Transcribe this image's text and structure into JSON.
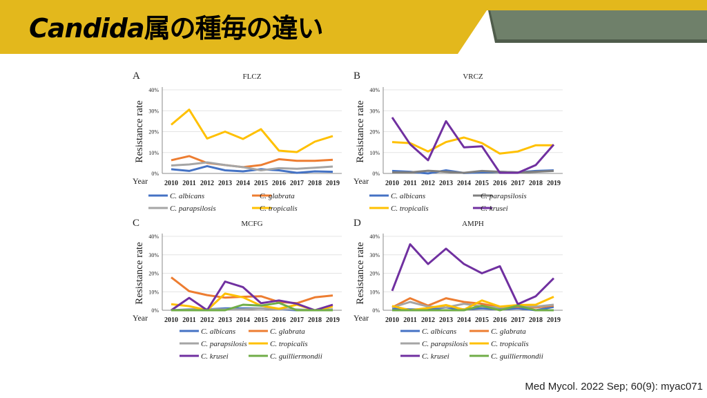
{
  "slide": {
    "title_italic": "Candida",
    "title_rest": "属の種毎の違い",
    "citation": "Med Mycol. 2022 Sep; 60(9): myac071",
    "colors": {
      "banner_yellow": "#E3B81C",
      "banner_green": "#6F806A",
      "banner_green_shadow": "#4F5C4B"
    }
  },
  "chart_data": [
    {
      "type": "line",
      "panel": "A",
      "title": "FLCZ",
      "ylabel": "Resistance rate",
      "xlabel": "Year",
      "yticks": [
        "0%",
        "10%",
        "20%",
        "30%",
        "40%"
      ],
      "ylim": [
        0,
        40
      ],
      "grid": true,
      "legend": "bottom",
      "categories": [
        "2010",
        "2011",
        "2012",
        "2013",
        "2014",
        "2015",
        "2016",
        "2017",
        "2018",
        "2019"
      ],
      "series": [
        {
          "name": "C. albicans",
          "color": "#4472C4",
          "values": [
            2,
            1.2,
            3.5,
            1.5,
            1,
            2,
            1.5,
            0.3,
            1,
            0.8
          ]
        },
        {
          "name": "C. glabrata",
          "color": "#ED7D31",
          "values": [
            6.3,
            8.3,
            5,
            4,
            3,
            4,
            6.8,
            6,
            6,
            6.5
          ]
        },
        {
          "name": "C. parapsilosis",
          "color": "#A5A5A5",
          "values": [
            3.8,
            4.3,
            5.3,
            4,
            3,
            1.5,
            2.5,
            2.2,
            2.7,
            3.3
          ]
        },
        {
          "name": "C. tropicalis",
          "color": "#FFC000",
          "values": [
            23.3,
            30.5,
            16.7,
            20,
            16.5,
            21.2,
            10.9,
            10.2,
            15.2,
            17.9
          ]
        }
      ]
    },
    {
      "type": "line",
      "panel": "B",
      "title": "VRCZ",
      "ylabel": "Resistance rate",
      "xlabel": "Year",
      "yticks": [
        "0%",
        "10%",
        "20%",
        "30%",
        "40%"
      ],
      "ylim": [
        0,
        40
      ],
      "grid": true,
      "legend": "bottom",
      "categories": [
        "2010",
        "2011",
        "2012",
        "2013",
        "2014",
        "2015",
        "2016",
        "2017",
        "2018",
        "2019"
      ],
      "series": [
        {
          "name": "C. albicans",
          "color": "#4472C4",
          "values": [
            1.2,
            0.8,
            0,
            1.5,
            0.2,
            0.5,
            0.8,
            0.5,
            1.2,
            1.5
          ]
        },
        {
          "name": "C. parapsilosis",
          "color": "#7F7F7F",
          "values": [
            0.5,
            0.5,
            1.3,
            0.8,
            0.3,
            1.2,
            0.8,
            0.5,
            0.8,
            1.2
          ]
        },
        {
          "name": "C. tropicalis",
          "color": "#FFC000",
          "values": [
            15,
            14.5,
            10.5,
            15,
            17.2,
            14.5,
            9.5,
            10.5,
            13.5,
            13.5
          ]
        },
        {
          "name": "C. krusei",
          "color": "#7030A0",
          "values": [
            26.8,
            14,
            6.3,
            25,
            12.5,
            13,
            0.3,
            0.3,
            4,
            13.8
          ]
        }
      ]
    },
    {
      "type": "line",
      "panel": "C",
      "title": "MCFG",
      "ylabel": "Resistance rate",
      "xlabel": "Year",
      "yticks": [
        "0%",
        "10%",
        "20%",
        "30%",
        "40%"
      ],
      "ylim": [
        0,
        40
      ],
      "grid": true,
      "legend": "bottom",
      "categories": [
        "2010",
        "2011",
        "2012",
        "2013",
        "2014",
        "2015",
        "2016",
        "2017",
        "2018",
        "2019"
      ],
      "series": [
        {
          "name": "C. albicans",
          "color": "#4472C4",
          "values": [
            0,
            0.5,
            0.5,
            1,
            1,
            1,
            0.5,
            0,
            0,
            0.5
          ]
        },
        {
          "name": "C. glabrata",
          "color": "#ED7D31",
          "values": [
            17.8,
            10.3,
            8.2,
            6.8,
            7.3,
            7.6,
            4.5,
            3.8,
            7,
            8
          ]
        },
        {
          "name": "C. parapsilosis",
          "color": "#A5A5A5",
          "values": [
            0,
            0.3,
            0.5,
            0.5,
            0.5,
            1,
            0.5,
            0.5,
            0,
            0.5
          ]
        },
        {
          "name": "C. tropicalis",
          "color": "#FFC000",
          "values": [
            3.3,
            2.2,
            0,
            9,
            7,
            2.5,
            0.8,
            3,
            0,
            2
          ]
        },
        {
          "name": "C. krusei",
          "color": "#7030A0",
          "values": [
            0,
            6.7,
            0,
            15.5,
            12.5,
            3.8,
            5.3,
            3.5,
            0,
            3
          ]
        },
        {
          "name": "C. guilliermondii",
          "color": "#70AD47",
          "values": [
            0,
            0,
            0,
            0,
            3,
            2.5,
            4,
            0,
            0,
            0
          ]
        }
      ]
    },
    {
      "type": "line",
      "panel": "D",
      "title": "AMPH",
      "ylabel": "Resistance rate",
      "xlabel": "Year",
      "yticks": [
        "0%",
        "10%",
        "20%",
        "30%",
        "40%"
      ],
      "ylim": [
        0,
        40
      ],
      "grid": true,
      "legend": "bottom",
      "categories": [
        "2010",
        "2011",
        "2012",
        "2013",
        "2014",
        "2015",
        "2016",
        "2017",
        "2018",
        "2019"
      ],
      "series": [
        {
          "name": "C. albicans",
          "color": "#4472C4",
          "values": [
            1,
            0.5,
            0.5,
            1.5,
            0.5,
            1,
            0.5,
            1,
            0,
            1.8
          ]
        },
        {
          "name": "C. glabrata",
          "color": "#ED7D31",
          "values": [
            1.5,
            6.5,
            2.5,
            6.5,
            4.5,
            3.5,
            1.5,
            2,
            1.5,
            2.5
          ]
        },
        {
          "name": "C. parapsilosis",
          "color": "#A5A5A5",
          "values": [
            1.5,
            4.5,
            2,
            1.5,
            3.5,
            2,
            1.5,
            2.5,
            2,
            3
          ]
        },
        {
          "name": "C. tropicalis",
          "color": "#FFC000",
          "values": [
            2.3,
            0,
            1.2,
            2.8,
            0.3,
            5.3,
            2,
            2.8,
            3,
            7.3
          ]
        },
        {
          "name": "C. krusei",
          "color": "#7030A0",
          "values": [
            10.5,
            35.7,
            25,
            33.3,
            25,
            20,
            23.8,
            3.3,
            7.6,
            17.3
          ]
        },
        {
          "name": "C. guilliermondii",
          "color": "#70AD47",
          "values": [
            0,
            0,
            0,
            0,
            0,
            2.5,
            0,
            2.5,
            0,
            0
          ]
        }
      ]
    }
  ]
}
